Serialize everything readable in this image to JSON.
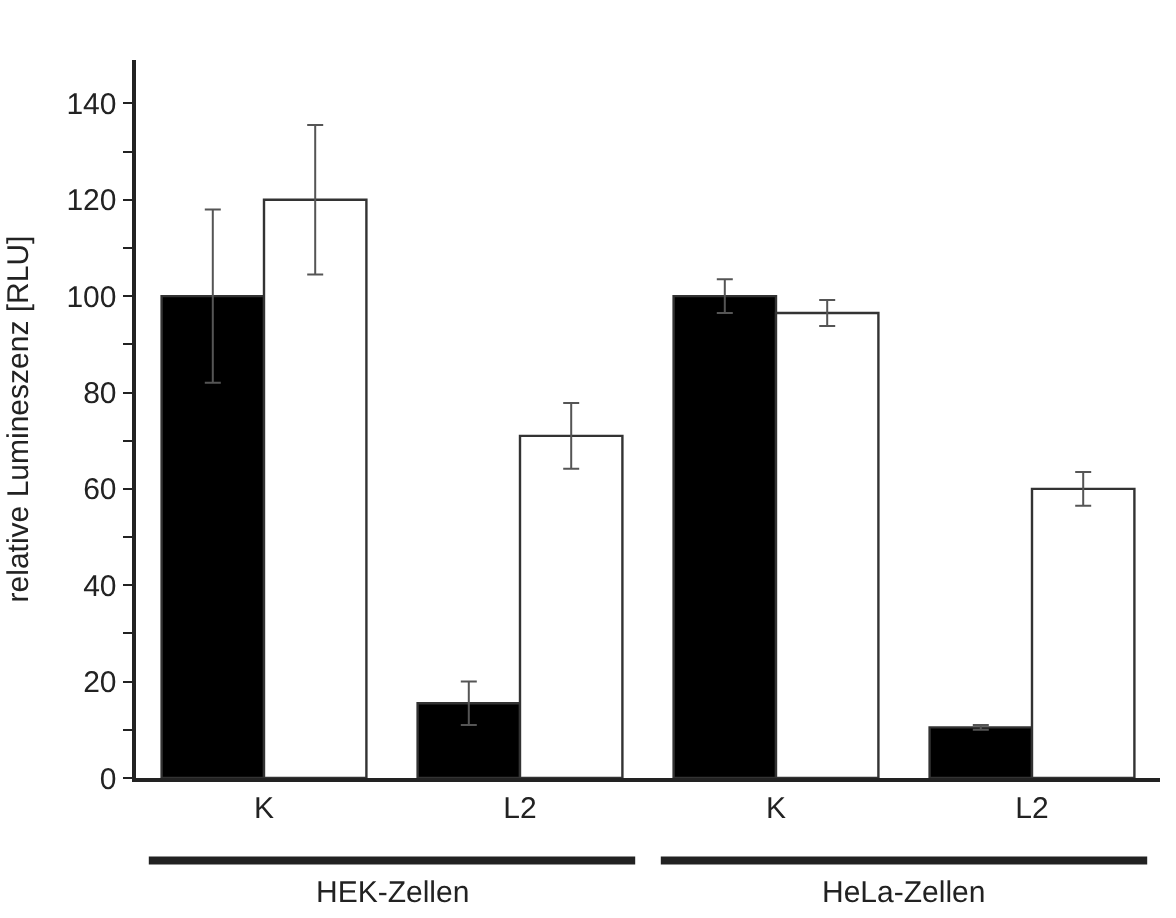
{
  "chart_data": {
    "type": "bar",
    "ylabel": "relative Lumineszenz [RLU]",
    "categories": [
      "K",
      "L2",
      "K",
      "L2"
    ],
    "series": [
      {
        "color": "#000000",
        "values": [
          100,
          15.5,
          100,
          10.5
        ],
        "errors": [
          18,
          4.5,
          3.5,
          0.5
        ]
      },
      {
        "color": "#ffffff",
        "values": [
          120,
          71,
          96.5,
          60
        ],
        "errors": [
          15.5,
          6.8,
          2.7,
          3.5
        ]
      }
    ],
    "ylim": [
      0,
      149
    ],
    "yticks": [
      0,
      {
        "value": 10,
        "label": null
      },
      20,
      {
        "value": 30,
        "label": null
      },
      40,
      {
        "value": 50,
        "label": null
      },
      60,
      {
        "value": 70,
        "label": null
      },
      80,
      {
        "value": 90,
        "label": null
      },
      100,
      {
        "value": 110,
        "label": null
      },
      120,
      {
        "value": 130,
        "label": null
      },
      140
    ],
    "annotations": [
      "HEK-Zellen",
      "HeLa-Zellen"
    ]
  }
}
